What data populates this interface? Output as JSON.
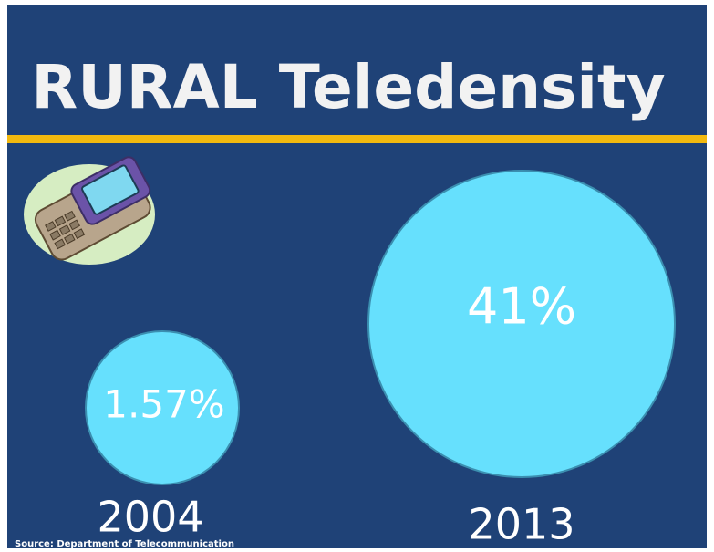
{
  "title": "RURAL Teledensity",
  "items": [
    {
      "year": "2004",
      "value_label": "1.57%"
    },
    {
      "year": "2013",
      "value_label": "41%"
    }
  ],
  "source": "Source: Department of Telecommunication"
}
